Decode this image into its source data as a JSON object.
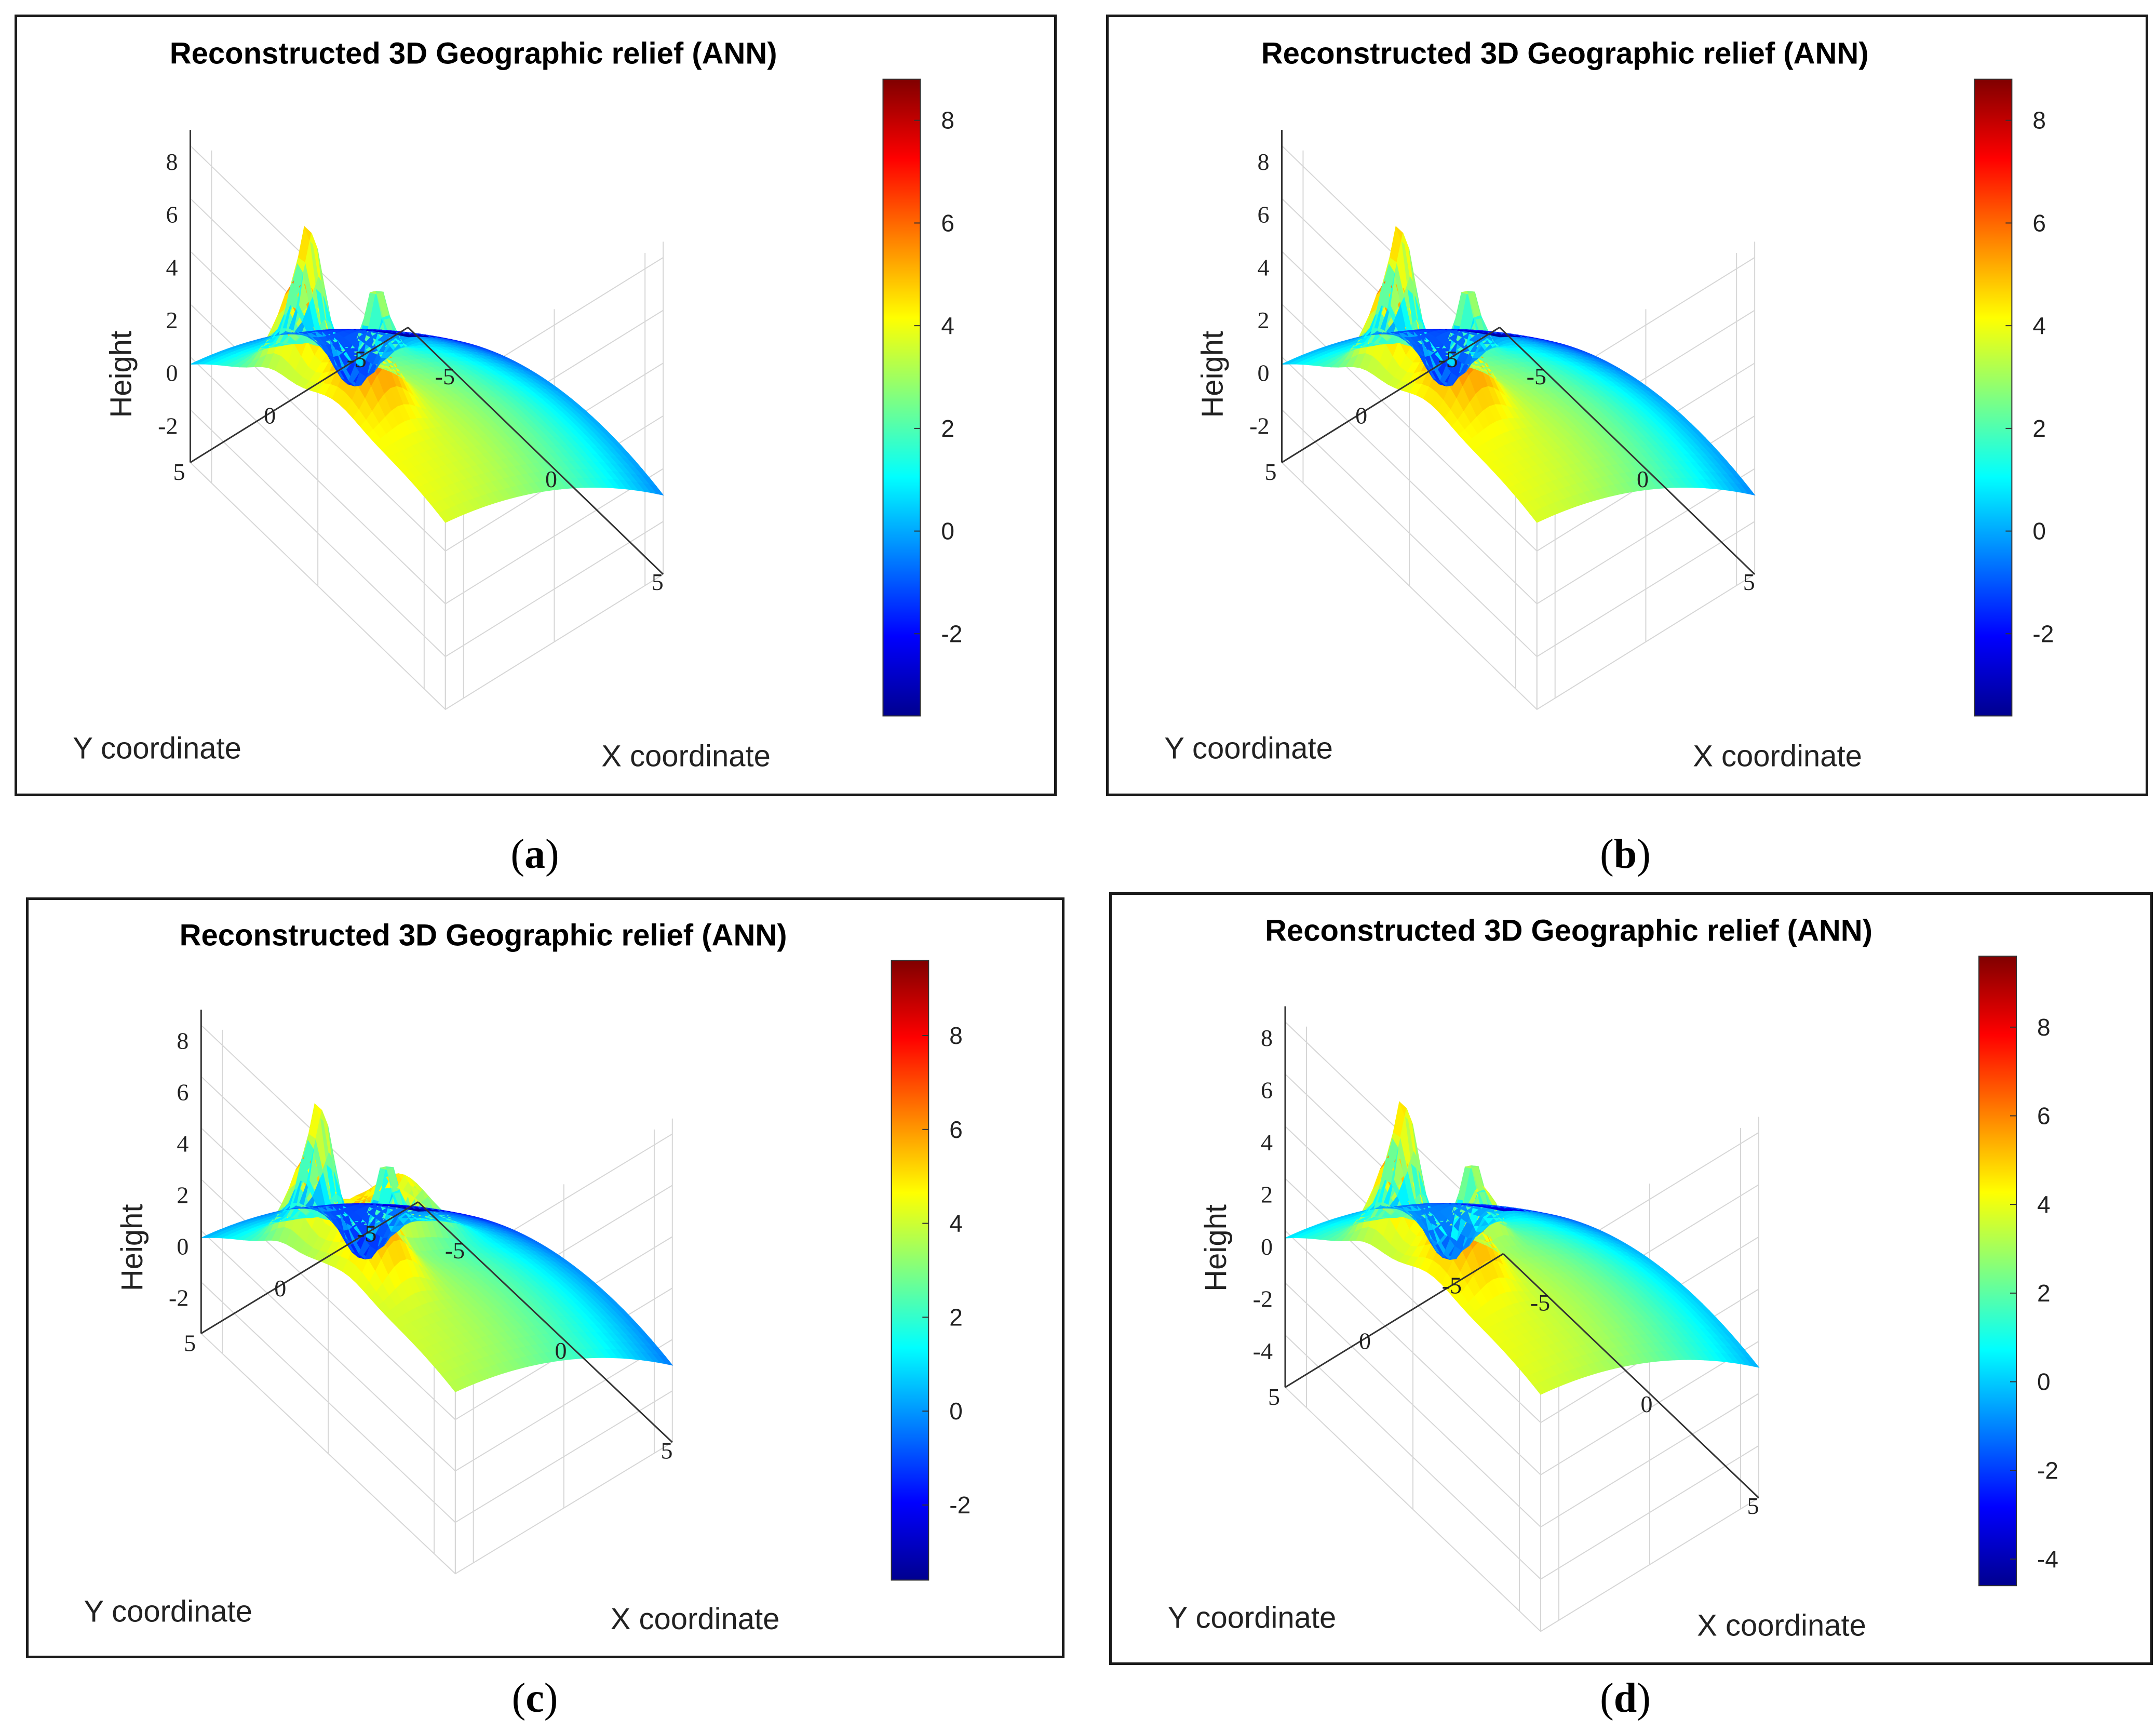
{
  "chart_data": [
    {
      "type": "surface3d",
      "title": "Reconstructed 3D Geographic relief (ANN)",
      "xlabel": "X coordinate",
      "ylabel": "Y coordinate",
      "zlabel": "Height",
      "xticks": [
        "-5",
        "0",
        "5"
      ],
      "yticks": [
        "-5",
        "0",
        "5"
      ],
      "zticks": [
        "-2",
        "0",
        "2",
        "4",
        "6",
        "8"
      ],
      "colorbar": {
        "ticks": [
          "-2",
          "0",
          "2",
          "4",
          "6",
          "8"
        ],
        "range": [
          -3.6,
          8.8
        ]
      },
      "caption_letter": "a"
    },
    {
      "type": "surface3d",
      "title": "Reconstructed 3D Geographic relief (ANN)",
      "xlabel": "X coordinate",
      "ylabel": "Y coordinate",
      "zlabel": "Height",
      "xticks": [
        "-5",
        "0",
        "5"
      ],
      "yticks": [
        "-5",
        "0",
        "5"
      ],
      "zticks": [
        "-2",
        "0",
        "2",
        "4",
        "6",
        "8"
      ],
      "colorbar": {
        "ticks": [
          "-2",
          "0",
          "2",
          "4",
          "6",
          "8"
        ],
        "range": [
          -3.6,
          8.8
        ]
      },
      "caption_letter": "b"
    },
    {
      "type": "surface3d",
      "title": "Reconstructed 3D Geographic relief (ANN)",
      "xlabel": "X coordinate",
      "ylabel": "Y coordinate",
      "zlabel": "Height",
      "xticks": [
        "-5",
        "0",
        "5"
      ],
      "yticks": [
        "-5",
        "0",
        "5"
      ],
      "zticks": [
        "-2",
        "0",
        "2",
        "4",
        "6",
        "8"
      ],
      "colorbar": {
        "ticks": [
          "-2",
          "0",
          "2",
          "4",
          "6",
          "8"
        ],
        "range": [
          -3.6,
          9.6
        ]
      },
      "caption_letter": "c"
    },
    {
      "type": "surface3d",
      "title": "Reconstructed 3D Geographic relief (ANN)",
      "xlabel": "X coordinate",
      "ylabel": "Y coordinate",
      "zlabel": "Height",
      "xticks": [
        "-5",
        "0",
        "5"
      ],
      "yticks": [
        "-5",
        "0",
        "5"
      ],
      "zticks": [
        "-4",
        "-2",
        "0",
        "2",
        "4",
        "6",
        "8"
      ],
      "colorbar": {
        "ticks": [
          "-4",
          "-2",
          "0",
          "2",
          "4",
          "6",
          "8"
        ],
        "range": [
          -4.6,
          9.6
        ]
      },
      "caption_letter": "d"
    }
  ],
  "colors": {
    "jet": [
      "#00008f",
      "#0000ff",
      "#0080ff",
      "#00ffff",
      "#80ff80",
      "#ffff00",
      "#ff8000",
      "#ff0000",
      "#800000"
    ],
    "frame": "#1a1a1a",
    "grid": "#d6d6d6"
  }
}
